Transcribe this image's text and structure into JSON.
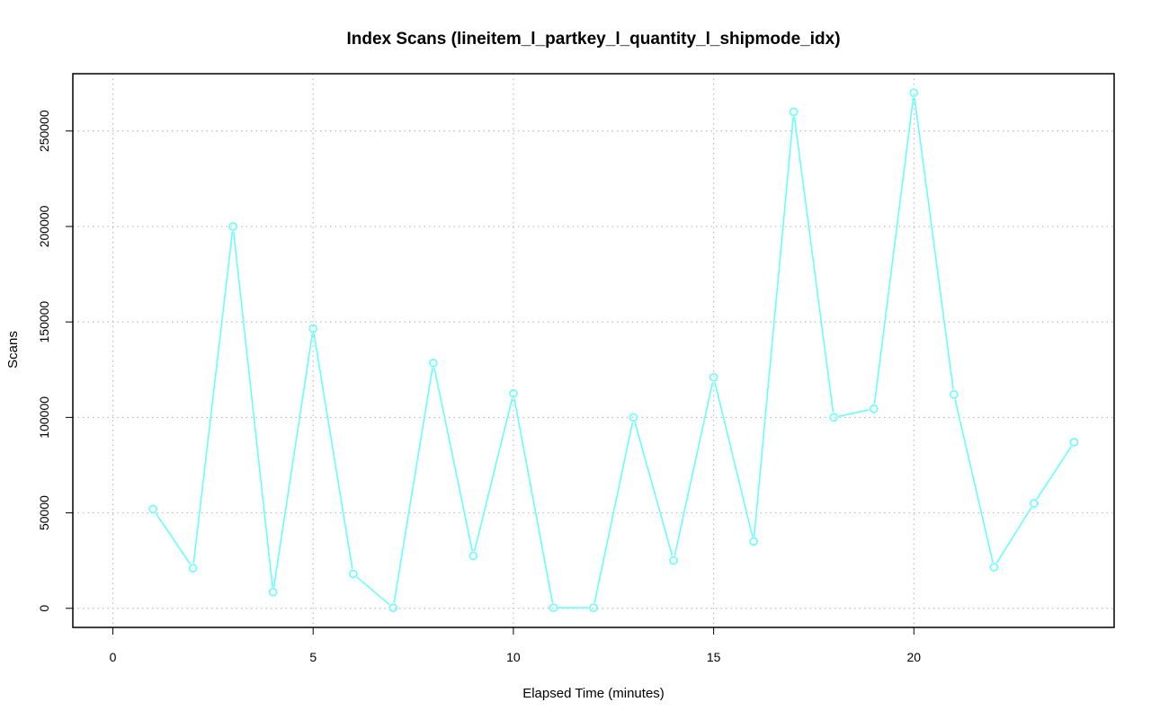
{
  "chart_data": {
    "type": "line",
    "title": "Index Scans (lineitem_l_partkey_l_quantity_l_shipmode_idx)",
    "xlabel": "Elapsed Time (minutes)",
    "ylabel": "Scans",
    "xlim": [
      -1,
      25
    ],
    "ylim": [
      -10000,
      280000
    ],
    "xticks": [
      0,
      5,
      10,
      15,
      20
    ],
    "yticks": [
      0,
      50000,
      100000,
      150000,
      200000,
      250000
    ],
    "grid": true,
    "line_color": "#66ffff",
    "series": [
      {
        "x": [
          1,
          2,
          3,
          4,
          5,
          6,
          7,
          8,
          9,
          10,
          11,
          12,
          13,
          14,
          15,
          16,
          17,
          18,
          19,
          20,
          21,
          22,
          23,
          24
        ],
        "y": [
          52000,
          21000,
          200000,
          8500,
          146500,
          18000,
          300,
          128500,
          27500,
          112500,
          300,
          300,
          100000,
          25000,
          121000,
          35000,
          260000,
          100000,
          104500,
          270000,
          112000,
          21500,
          55000,
          87000
        ]
      }
    ]
  }
}
